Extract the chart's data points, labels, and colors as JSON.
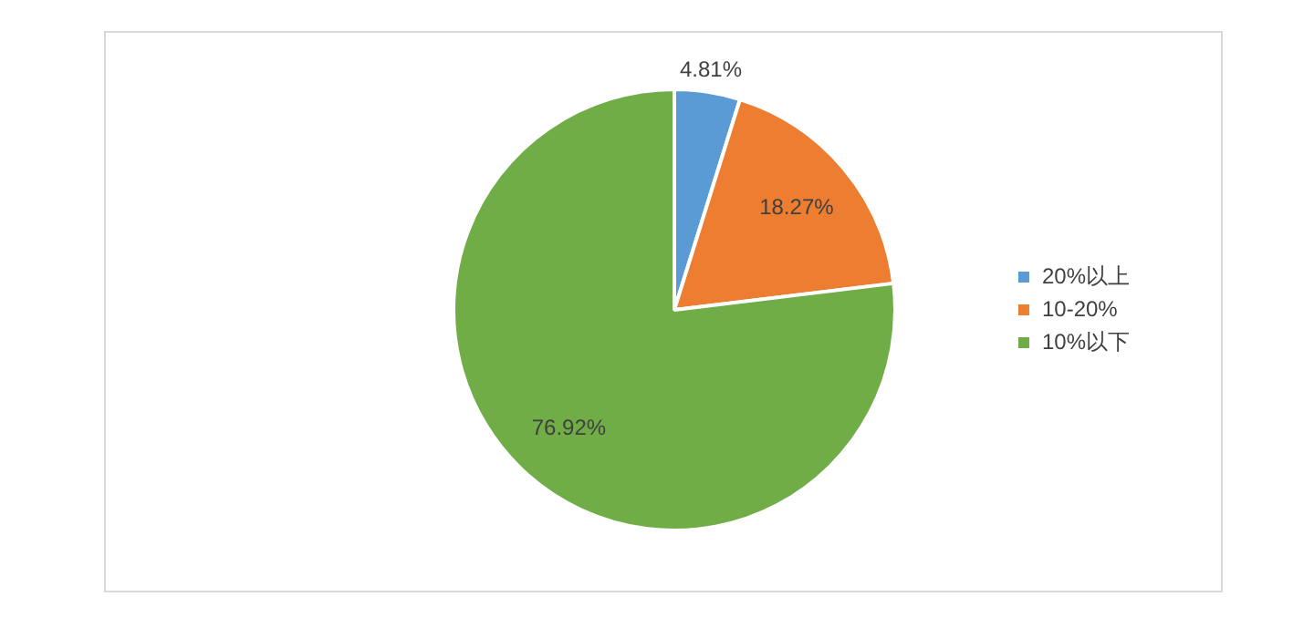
{
  "chart_data": {
    "type": "pie",
    "categories": [
      "20%以上",
      "10-20%",
      "10%以下"
    ],
    "values": [
      4.81,
      18.27,
      76.92
    ],
    "colors": [
      "#5b9bd5",
      "#ed7d31",
      "#70ad47"
    ],
    "value_labels": [
      "4.81%",
      "18.27%",
      "76.92%"
    ],
    "legend": "right"
  }
}
